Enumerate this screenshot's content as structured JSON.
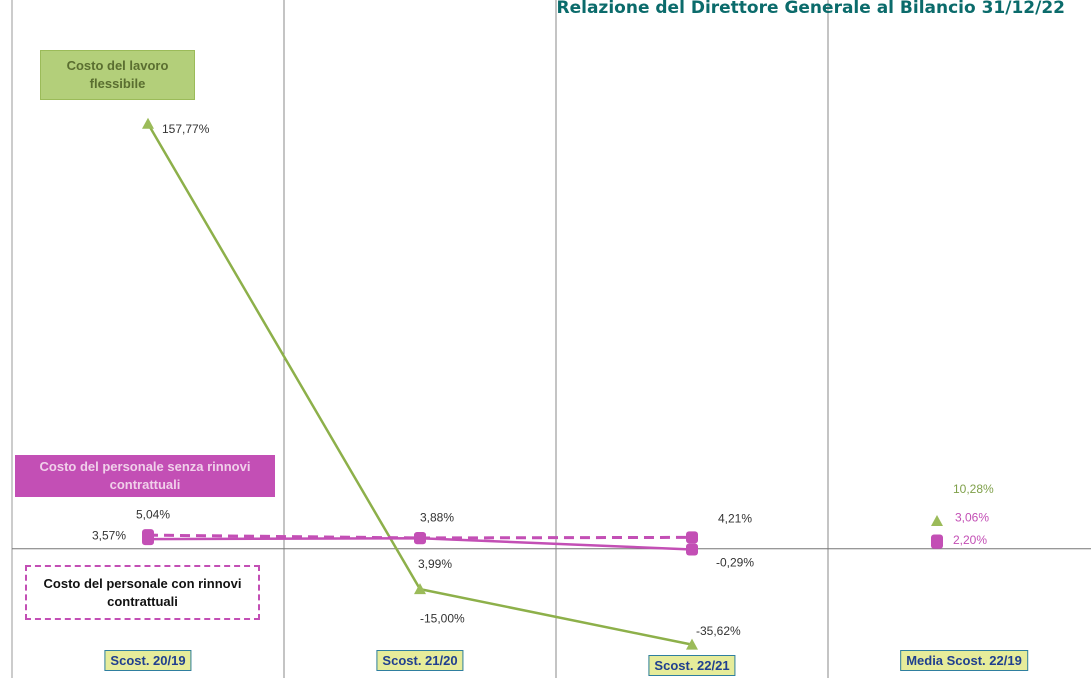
{
  "chart_data": {
    "type": "line",
    "title": "Relazione del Direttore Generale al Bilancio 31/12/22",
    "categories": [
      "Scost. 20/19",
      "Scost. 21/20",
      "Scost. 22/21",
      "Media Scost. 22/19"
    ],
    "lines_join_first": 3,
    "ylim": [
      -48,
      200
    ],
    "series": [
      {
        "name": "Costo del lavoro flessibile",
        "color": "#8db04a",
        "marker": "triangle",
        "dash": false,
        "values": [
          157.77,
          -15.0,
          -35.62,
          10.28
        ],
        "value_labels": [
          "157,77%",
          "-15,00%",
          "-35,62%",
          "10,28%"
        ]
      },
      {
        "name": "Costo del personale senza rinnovi contrattuali",
        "color": "#c34fb5",
        "marker": "square",
        "dash": false,
        "values": [
          3.57,
          3.88,
          -0.29,
          2.2
        ],
        "value_labels": [
          "3,57%",
          "3,88%",
          "-0,29%",
          "2,20%"
        ]
      },
      {
        "name": "Costo del personale con rinnovi contrattuali",
        "color": "#c34fb5",
        "marker": "square",
        "dash": true,
        "values": [
          5.04,
          3.99,
          4.21,
          3.06
        ],
        "value_labels": [
          "5,04%",
          "3,99%",
          "4,21%",
          "3,06%"
        ]
      }
    ]
  }
}
